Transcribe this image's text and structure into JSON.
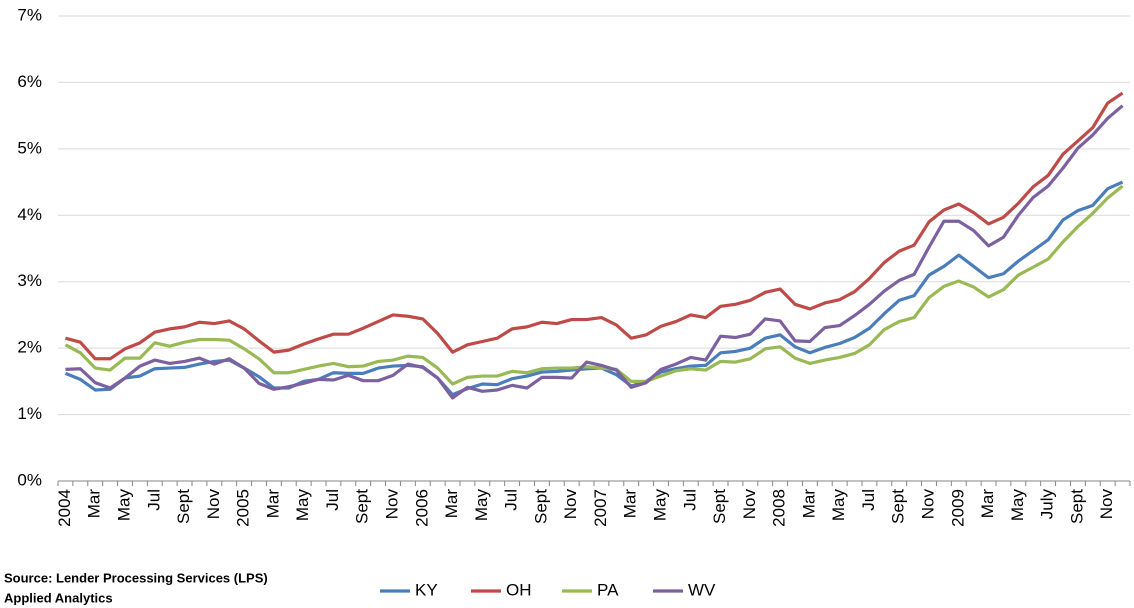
{
  "chart_data": {
    "type": "line",
    "categories": [
      "2004",
      null,
      "Mar",
      null,
      "May",
      null,
      "Jul",
      null,
      "Sept",
      null,
      "Nov",
      null,
      "2005",
      null,
      "Mar",
      null,
      "May",
      null,
      "Jul",
      null,
      "Sept",
      null,
      "Nov",
      null,
      "2006",
      null,
      "Mar",
      null,
      "May",
      null,
      "Jul",
      null,
      "Sept",
      null,
      "Nov",
      null,
      "2007",
      null,
      "Mar",
      null,
      "May",
      null,
      "Jul",
      null,
      "Sept",
      null,
      "Nov",
      null,
      "2008",
      null,
      "Mar",
      null,
      "May",
      null,
      "Jul",
      null,
      "Sept",
      null,
      "Nov",
      null,
      "2009",
      null,
      "Mar",
      null,
      "May",
      null,
      "July",
      null,
      "Sept",
      null,
      "Nov",
      null
    ],
    "series": [
      {
        "name": "KY",
        "color": "#4a7ebb",
        "values": [
          1.62,
          1.53,
          1.37,
          1.38,
          1.55,
          1.58,
          1.69,
          1.7,
          1.71,
          1.76,
          1.8,
          1.82,
          1.7,
          1.57,
          1.4,
          1.4,
          1.5,
          1.53,
          1.63,
          1.62,
          1.62,
          1.7,
          1.73,
          1.74,
          1.72,
          1.55,
          1.3,
          1.39,
          1.46,
          1.45,
          1.54,
          1.58,
          1.64,
          1.65,
          1.67,
          1.69,
          1.7,
          1.6,
          1.43,
          1.5,
          1.64,
          1.69,
          1.73,
          1.74,
          1.93,
          1.95,
          2.0,
          2.15,
          2.2,
          2.02,
          1.93,
          2.01,
          2.07,
          2.16,
          2.3,
          2.52,
          2.72,
          2.79,
          3.1,
          3.23,
          3.4,
          3.23,
          3.06,
          3.12,
          3.31,
          3.47,
          3.63,
          3.93,
          4.07,
          4.15,
          4.4,
          4.5
        ]
      },
      {
        "name": "OH",
        "color": "#be4b48",
        "values": [
          2.15,
          2.09,
          1.84,
          1.84,
          1.99,
          2.08,
          2.24,
          2.29,
          2.32,
          2.39,
          2.37,
          2.41,
          2.29,
          2.11,
          1.94,
          1.97,
          2.06,
          2.14,
          2.21,
          2.21,
          2.3,
          2.4,
          2.5,
          2.48,
          2.44,
          2.22,
          1.94,
          2.05,
          2.1,
          2.15,
          2.29,
          2.32,
          2.39,
          2.37,
          2.43,
          2.43,
          2.46,
          2.35,
          2.15,
          2.2,
          2.33,
          2.4,
          2.5,
          2.46,
          2.63,
          2.66,
          2.72,
          2.84,
          2.89,
          2.66,
          2.59,
          2.68,
          2.73,
          2.85,
          3.05,
          3.29,
          3.46,
          3.55,
          3.9,
          4.08,
          4.17,
          4.04,
          3.87,
          3.97,
          4.18,
          4.43,
          4.6,
          4.92,
          5.12,
          5.32,
          5.69,
          5.84
        ]
      },
      {
        "name": "PA",
        "color": "#98b954",
        "values": [
          2.05,
          1.93,
          1.7,
          1.67,
          1.85,
          1.85,
          2.08,
          2.03,
          2.09,
          2.13,
          2.13,
          2.12,
          1.99,
          1.84,
          1.63,
          1.63,
          1.68,
          1.73,
          1.77,
          1.72,
          1.73,
          1.8,
          1.82,
          1.88,
          1.86,
          1.7,
          1.46,
          1.56,
          1.58,
          1.58,
          1.65,
          1.63,
          1.69,
          1.7,
          1.7,
          1.72,
          1.7,
          1.68,
          1.5,
          1.5,
          1.58,
          1.66,
          1.69,
          1.67,
          1.8,
          1.79,
          1.84,
          1.99,
          2.02,
          1.85,
          1.77,
          1.82,
          1.86,
          1.92,
          2.05,
          2.28,
          2.4,
          2.46,
          2.76,
          2.93,
          3.01,
          2.92,
          2.77,
          2.88,
          3.1,
          3.22,
          3.34,
          3.6,
          3.83,
          4.03,
          4.26,
          4.44
        ]
      },
      {
        "name": "WV",
        "color": "#7d60a0",
        "values": [
          1.68,
          1.69,
          1.48,
          1.4,
          1.55,
          1.73,
          1.82,
          1.77,
          1.8,
          1.85,
          1.76,
          1.84,
          1.7,
          1.47,
          1.38,
          1.42,
          1.47,
          1.53,
          1.52,
          1.59,
          1.51,
          1.51,
          1.59,
          1.76,
          1.71,
          1.55,
          1.25,
          1.41,
          1.35,
          1.37,
          1.44,
          1.4,
          1.56,
          1.56,
          1.55,
          1.79,
          1.74,
          1.67,
          1.41,
          1.48,
          1.68,
          1.76,
          1.86,
          1.82,
          2.18,
          2.16,
          2.21,
          2.44,
          2.41,
          2.11,
          2.1,
          2.31,
          2.34,
          2.49,
          2.66,
          2.86,
          3.02,
          3.11,
          3.52,
          3.91,
          3.91,
          3.77,
          3.54,
          3.67,
          4.0,
          4.27,
          4.44,
          4.71,
          5.01,
          5.21,
          5.46,
          5.65
        ]
      }
    ],
    "ylim": [
      0,
      7
    ],
    "yticks": [
      {
        "value": 0,
        "label": "0%"
      },
      {
        "value": 1,
        "label": "1%"
      },
      {
        "value": 2,
        "label": "2%"
      },
      {
        "value": 3,
        "label": "3%"
      },
      {
        "value": 4,
        "label": "4%"
      },
      {
        "value": 5,
        "label": "5%"
      },
      {
        "value": 6,
        "label": "6%"
      },
      {
        "value": 7,
        "label": "7%"
      }
    ],
    "grid": true,
    "legend": "bottom",
    "source": [
      "Source: Lender Processing Services (LPS)",
      "Applied Analytics"
    ]
  }
}
